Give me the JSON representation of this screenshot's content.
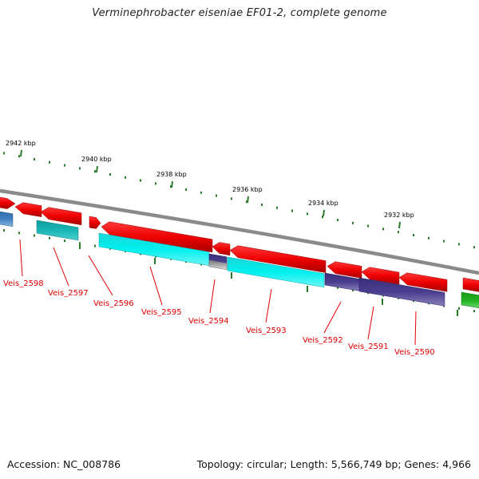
{
  "title": "Verminephrobacter eiseniae EF01-2, complete genome",
  "footer": {
    "accession": "Accession: NC_008786",
    "summary": "Topology: circular; Length: 5,566,749 bp; Genes: 4,966"
  },
  "colors": {
    "backbone": "#8a8a8a",
    "forward_gene": "#ee0000",
    "cds_cyan": "#00e5e5",
    "cds_teal": "#17b3b3",
    "cds_indigo": "#4a3d8f",
    "cds_blue": "#3d7fc0",
    "cds_green": "#22b422",
    "ticks": "#2a7a2a",
    "label": "#e00000"
  },
  "scale_ticks": [
    {
      "label": "2942 kbp"
    },
    {
      "label": "2940 kbp"
    },
    {
      "label": "2938 kbp"
    },
    {
      "label": "2936 kbp"
    },
    {
      "label": "2934 kbp"
    },
    {
      "label": "2932 kbp"
    }
  ],
  "gene_labels": [
    {
      "label": "Veis_2598"
    },
    {
      "label": "Veis_2597"
    },
    {
      "label": "Veis_2596"
    },
    {
      "label": "Veis_2595"
    },
    {
      "label": "Veis_2594"
    },
    {
      "label": "Veis_2593"
    },
    {
      "label": "Veis_2592"
    },
    {
      "label": "Veis_2591"
    },
    {
      "label": "Veis_2590"
    }
  ]
}
